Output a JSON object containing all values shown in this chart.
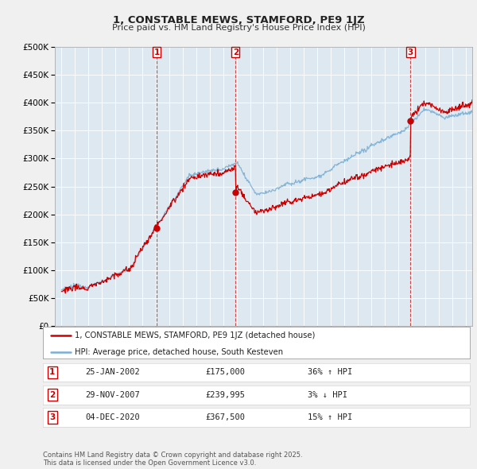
{
  "title": "1, CONSTABLE MEWS, STAMFORD, PE9 1JZ",
  "subtitle": "Price paid vs. HM Land Registry's House Price Index (HPI)",
  "background_color": "#f0f0f0",
  "plot_bg_color": "#dde8f0",
  "sale_color": "#cc0000",
  "hpi_color": "#7aafd4",
  "grid_color": "#ffffff",
  "sale_dates": [
    2002.07,
    2007.92,
    2020.92
  ],
  "sale_prices": [
    175000,
    239995,
    367500
  ],
  "sale_labels": [
    "1",
    "2",
    "3"
  ],
  "vline_color": "#cc0000",
  "legend_sale_label": "1, CONSTABLE MEWS, STAMFORD, PE9 1JZ (detached house)",
  "legend_hpi_label": "HPI: Average price, detached house, South Kesteven",
  "table_rows": [
    [
      "1",
      "25-JAN-2002",
      "£175,000",
      "36% ↑ HPI"
    ],
    [
      "2",
      "29-NOV-2007",
      "£239,995",
      "3% ↓ HPI"
    ],
    [
      "3",
      "04-DEC-2020",
      "£367,500",
      "15% ↑ HPI"
    ]
  ],
  "footer_text": "Contains HM Land Registry data © Crown copyright and database right 2025.\nThis data is licensed under the Open Government Licence v3.0.",
  "ylim": [
    0,
    500000
  ],
  "yticks": [
    0,
    50000,
    100000,
    150000,
    200000,
    250000,
    300000,
    350000,
    400000,
    450000,
    500000
  ],
  "xlim": [
    1994.5,
    2025.5
  ],
  "xticks": [
    1995,
    1996,
    1997,
    1998,
    1999,
    2000,
    2001,
    2002,
    2003,
    2004,
    2005,
    2006,
    2007,
    2008,
    2009,
    2010,
    2011,
    2012,
    2013,
    2014,
    2015,
    2016,
    2017,
    2018,
    2019,
    2020,
    2021,
    2022,
    2023,
    2024,
    2025
  ]
}
